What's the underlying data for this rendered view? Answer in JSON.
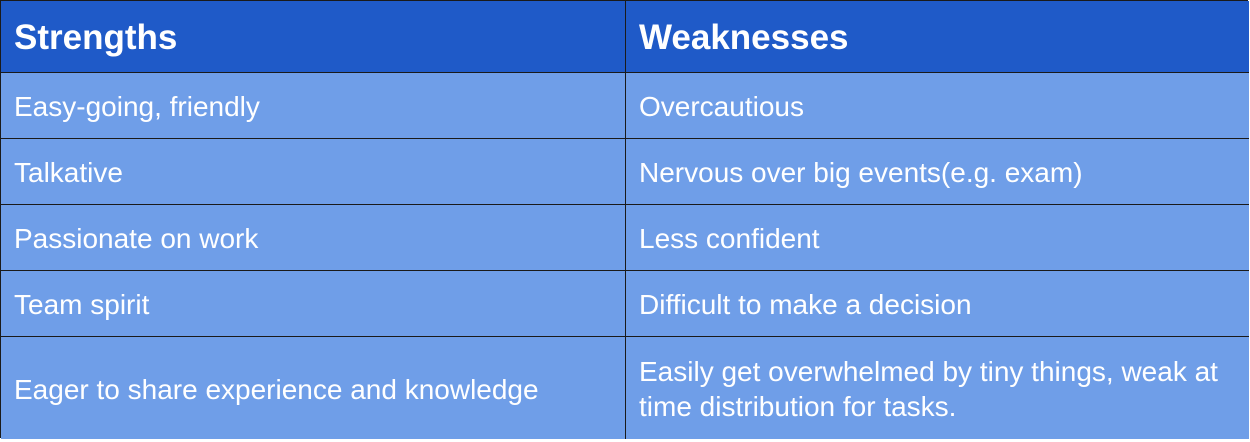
{
  "colors": {
    "header_bg": "#1f5ac8",
    "row_bg": "#6f9ee8",
    "text": "#ffffff",
    "border": "#1a1a1a"
  },
  "table": {
    "headers": [
      "Strengths",
      "Weaknesses"
    ],
    "rows": [
      [
        "Easy-going, friendly",
        "Overcautious"
      ],
      [
        "Talkative",
        "Nervous over big events(e.g. exam)"
      ],
      [
        "Passionate on work",
        "Less confident"
      ],
      [
        "Team spirit",
        "Difficult to make a decision"
      ],
      [
        "Eager to share experience and knowledge",
        "Easily get overwhelmed by tiny things, weak at time distribution for tasks."
      ]
    ]
  }
}
